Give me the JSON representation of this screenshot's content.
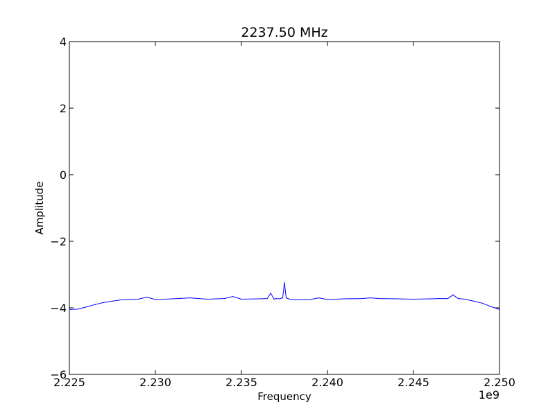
{
  "chart_data": {
    "type": "line",
    "title": "2237.50 MHz",
    "xlabel": "Frequency",
    "ylabel": "Amplitude",
    "x_offset_label": "1e9",
    "xlim": [
      2.225,
      2.25
    ],
    "ylim": [
      -6,
      4
    ],
    "x_ticks": [
      "2.225",
      "2.230",
      "2.235",
      "2.240",
      "2.245",
      "2.250"
    ],
    "y_ticks": [
      "−6",
      "−4",
      "−2",
      "0",
      "2",
      "4"
    ],
    "grid": false,
    "series": [
      {
        "color": "#0000ff",
        "x": [
          2.225,
          2.2255,
          2.226,
          2.2265,
          2.227,
          2.2275,
          2.228,
          2.229,
          2.2295,
          2.23,
          2.231,
          2.232,
          2.233,
          2.234,
          2.2345,
          2.235,
          2.236,
          2.2365,
          2.2367,
          2.2369,
          2.237,
          2.2372,
          2.2374,
          2.2375,
          2.2376,
          2.2378,
          2.238,
          2.239,
          2.2395,
          2.24,
          2.241,
          2.242,
          2.2425,
          2.243,
          2.244,
          2.245,
          2.246,
          2.2465,
          2.247,
          2.2473,
          2.2476,
          2.248,
          2.2485,
          2.249,
          2.2495,
          2.25
        ],
        "y": [
          -4.05,
          -4.04,
          -3.97,
          -3.9,
          -3.84,
          -3.8,
          -3.76,
          -3.74,
          -3.68,
          -3.75,
          -3.73,
          -3.7,
          -3.74,
          -3.72,
          -3.66,
          -3.74,
          -3.73,
          -3.72,
          -3.56,
          -3.74,
          -3.72,
          -3.73,
          -3.7,
          -3.24,
          -3.7,
          -3.74,
          -3.76,
          -3.75,
          -3.7,
          -3.75,
          -3.73,
          -3.72,
          -3.7,
          -3.72,
          -3.73,
          -3.74,
          -3.73,
          -3.72,
          -3.72,
          -3.61,
          -3.72,
          -3.74,
          -3.8,
          -3.86,
          -3.96,
          -4.05
        ]
      }
    ]
  }
}
